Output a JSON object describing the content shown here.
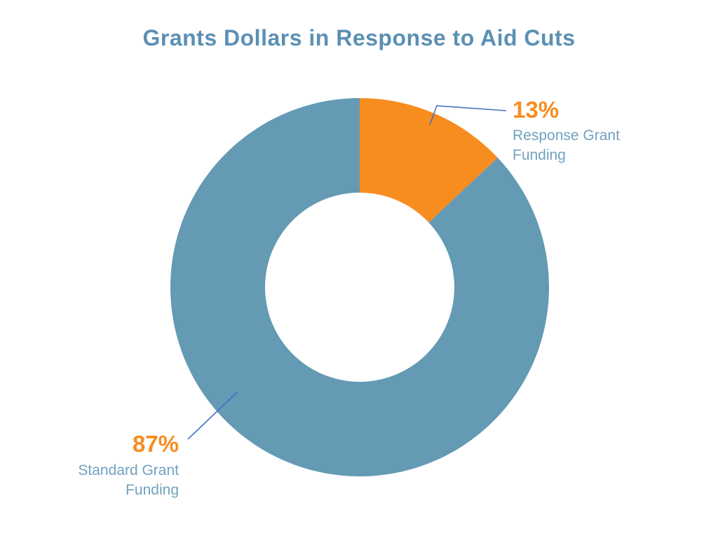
{
  "title": "Grants Dollars in Response to Aid Cuts",
  "colors": {
    "background": "#ffffff",
    "title_text": "#5b90b4",
    "category_text": "#72a1bf",
    "percent_text": "#f78c1f",
    "leader_line": "#4472c4",
    "slice_response": "#f78c1f",
    "slice_standard": "#649ab4"
  },
  "chart_data": {
    "type": "pie",
    "subtype": "donut",
    "title": "Grants Dollars in Response to Aid Cuts",
    "categories": [
      "Response Grant Funding",
      "Standard Grant Funding"
    ],
    "values": [
      13,
      87
    ],
    "unit": "percent",
    "series_colors": [
      "#f78c1f",
      "#649ab4"
    ],
    "start_angle_deg": 0,
    "direction": "clockwise",
    "inner_radius_ratio": 0.5,
    "legend_position": "none",
    "grid": false,
    "labels": [
      {
        "pct": "13%",
        "lines": [
          "Response Grant",
          "Funding"
        ]
      },
      {
        "pct": "87%",
        "lines": [
          "Standard Grant",
          "Funding"
        ]
      }
    ]
  }
}
